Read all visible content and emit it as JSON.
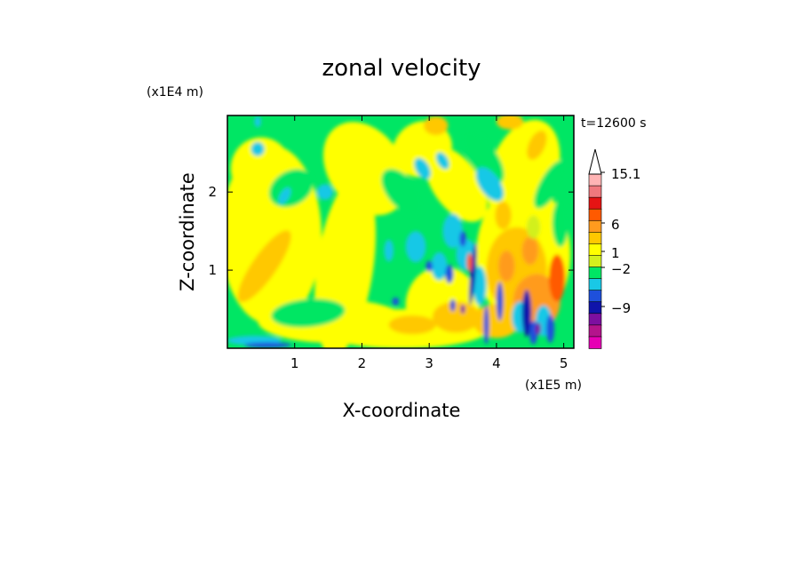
{
  "chart_data": {
    "type": "heatmap",
    "title": "zonal velocity",
    "xlabel": "X-coordinate",
    "ylabel": "Z-coordinate",
    "x_scale_label": "(x1E5 m)",
    "y_scale_label": "(x1E4 m)",
    "time_label": "t=12600 s",
    "xlim": [
      0,
      5.15
    ],
    "ylim": [
      0,
      2.98
    ],
    "x_ticks": [
      1,
      2,
      3,
      4,
      5
    ],
    "y_ticks": [
      1,
      2
    ],
    "colorbar": {
      "labels": [
        "15.1",
        "6",
        "1",
        "−2",
        "−9"
      ],
      "label_values": [
        15.1,
        6,
        1,
        -2,
        -9
      ],
      "levels": [
        -15,
        -12,
        -9,
        -6,
        -3,
        -2,
        -1,
        0,
        1,
        2,
        3,
        6,
        9,
        12,
        15.1
      ],
      "colors": [
        "#e600b4",
        "#b4148c",
        "#7d0fa0",
        "#0f14aa",
        "#1e50dc",
        "#19c8e6",
        "#00e664",
        "#d2f01e",
        "#ffff00",
        "#ffc800",
        "#ff9b1e",
        "#ff5a00",
        "#e61414",
        "#f0787d",
        "#ffb4b4"
      ],
      "colors_top_to_bottom": [
        "#ffb4b4",
        "#f0787d",
        "#e61414",
        "#ff5a00",
        "#ff9b1e",
        "#ffc800",
        "#ffff00",
        "#d2f01e",
        "#00e664",
        "#19c8e6",
        "#1e50dc",
        "#0f14aa",
        "#7d0fa0",
        "#b4148c",
        "#e600b4"
      ]
    },
    "field_summary": {
      "background_color": "#00e664",
      "dominant_values": "mostly between 0 and 3",
      "strong_positive_region_x": [
        3.7,
        5.1
      ],
      "strong_negative_streaks_x": [
        3.5,
        4.8
      ]
    }
  }
}
